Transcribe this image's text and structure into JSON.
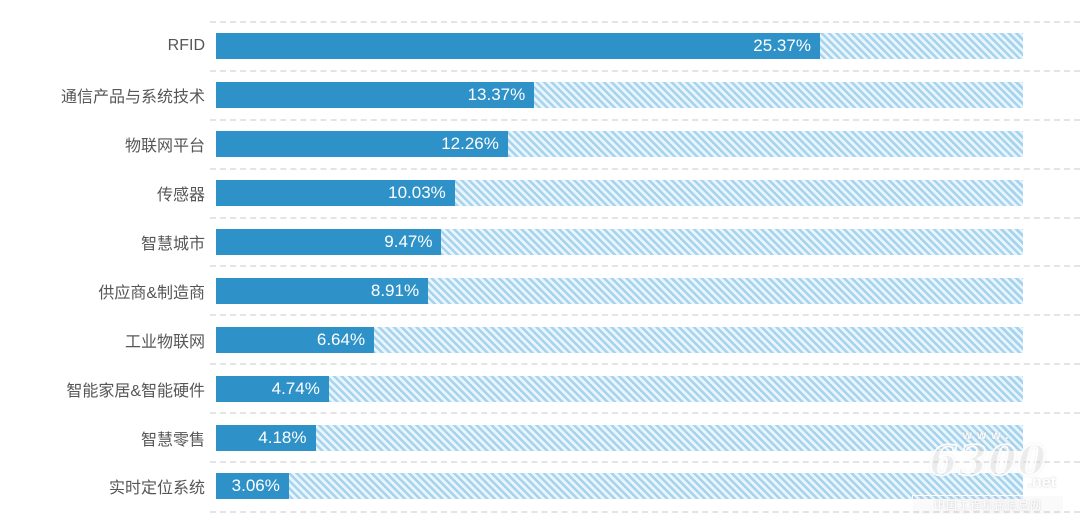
{
  "chart_data": {
    "type": "bar",
    "orientation": "horizontal",
    "title": "",
    "xlabel": "",
    "ylabel": "",
    "xlim": [
      0,
      33.9
    ],
    "grid": "dashed horizontal separators between rows",
    "legend": "none",
    "bar_color": "#2e92c8",
    "track_stripe_color": "#a6d3ee",
    "categories": [
      "RFID",
      "通信产品与系统技术",
      "物联网平台",
      "传感器",
      "智慧城市",
      "供应商&制造商",
      "工业物联网",
      "智能家居&智能硬件",
      "智慧零售",
      "实时定位系统"
    ],
    "values": [
      25.37,
      13.37,
      12.26,
      10.03,
      9.47,
      8.91,
      6.64,
      4.74,
      4.18,
      3.06
    ],
    "value_labels": [
      "25.37%",
      "13.37%",
      "12.26%",
      "10.03%",
      "9.47%",
      "8.91%",
      "6.64%",
      "4.74%",
      "4.18%",
      "3.06%"
    ]
  },
  "watermark": {
    "www": "www.",
    "site_number": "6300",
    "site_tld": ".net",
    "site_name": "中国工程机械信息网"
  }
}
